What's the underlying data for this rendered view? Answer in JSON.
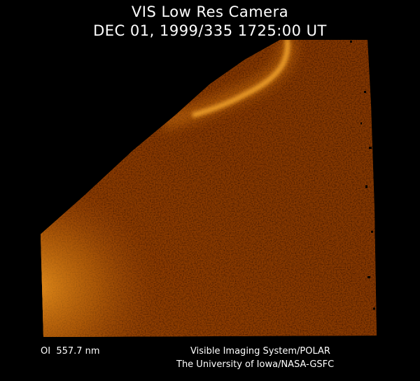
{
  "header": {
    "title": "VIS Low Res Camera",
    "timestamp": "DEC 01, 1999/335 1725:00 UT"
  },
  "image": {
    "subject": "auroral-emission-image",
    "colormap": [
      "#000000",
      "#3a1200",
      "#7a3600",
      "#b85e0a",
      "#e8900e",
      "#ffb020"
    ]
  },
  "footer": {
    "filter_label": "OI  557.7 nm",
    "instrument": "Visible Imaging System/POLAR",
    "credit": "The University of Iowa/NASA-GSFC"
  }
}
